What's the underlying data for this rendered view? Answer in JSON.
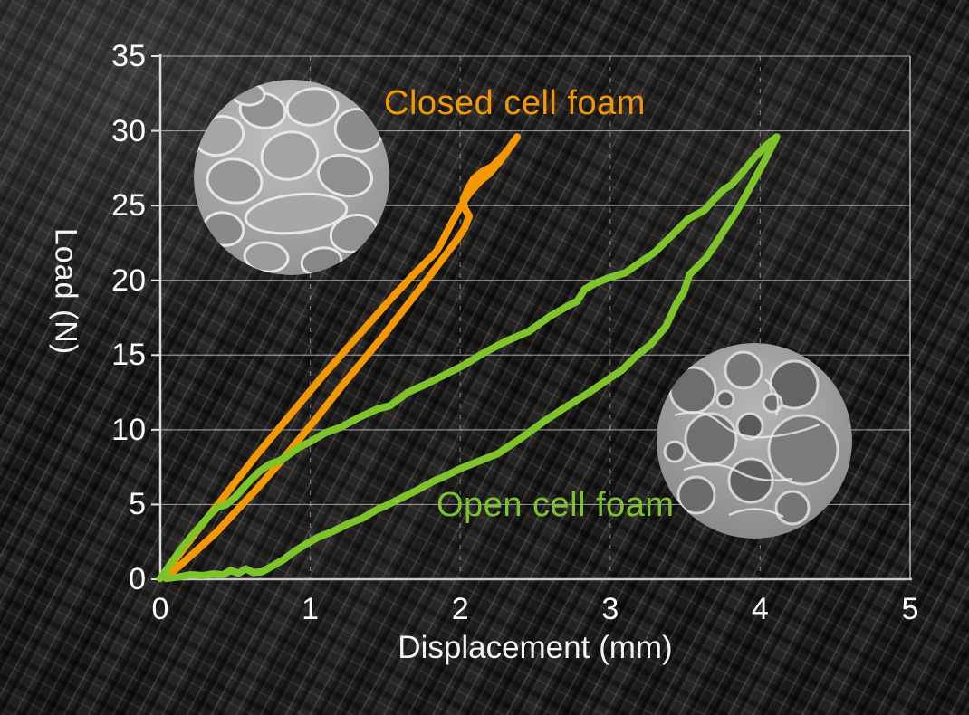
{
  "chart_data": {
    "type": "line",
    "title": "",
    "xlabel": "Displacement (mm)",
    "ylabel": "Load (N)",
    "xlim": [
      0,
      5
    ],
    "ylim": [
      0,
      35
    ],
    "x_ticks": [
      "0",
      "1",
      "2",
      "3",
      "4",
      "5"
    ],
    "x_tick_values": [
      0,
      1,
      2,
      3,
      4,
      5
    ],
    "y_ticks": [
      "0",
      "5",
      "10",
      "15",
      "20",
      "25",
      "30",
      "35"
    ],
    "y_tick_values": [
      0,
      5,
      10,
      15,
      20,
      25,
      30,
      35
    ],
    "grid": {
      "horizontal": "solid",
      "vertical": "dashed"
    },
    "legend_position": "inline-annotations",
    "series": [
      {
        "name": "Closed cell foam",
        "color": "#F39800",
        "points": [
          [
            0.02,
            0.2
          ],
          [
            0.1,
            1.3
          ],
          [
            0.22,
            2.9
          ],
          [
            0.36,
            4.7
          ],
          [
            0.5,
            6.5
          ],
          [
            0.65,
            8.4
          ],
          [
            0.8,
            10.2
          ],
          [
            0.95,
            12.0
          ],
          [
            1.1,
            13.8
          ],
          [
            1.25,
            15.5
          ],
          [
            1.4,
            17.2
          ],
          [
            1.55,
            18.9
          ],
          [
            1.68,
            20.3
          ],
          [
            1.78,
            21.3
          ],
          [
            1.84,
            21.9
          ],
          [
            1.88,
            22.6
          ],
          [
            1.94,
            23.8
          ],
          [
            2.0,
            24.9
          ],
          [
            2.06,
            25.8
          ],
          [
            2.13,
            26.6
          ],
          [
            2.19,
            27.1
          ],
          [
            2.26,
            27.9
          ],
          [
            2.33,
            28.9
          ],
          [
            2.38,
            29.6
          ],
          [
            2.35,
            29.15
          ],
          [
            2.29,
            28.4
          ],
          [
            2.21,
            27.6
          ],
          [
            2.15,
            27.3
          ],
          [
            2.09,
            26.8
          ],
          [
            2.05,
            26.1
          ],
          [
            2.02,
            25.4
          ],
          [
            2.03,
            24.8
          ],
          [
            2.06,
            24.3
          ],
          [
            2.03,
            23.5
          ],
          [
            1.97,
            22.6
          ],
          [
            1.88,
            21.4
          ],
          [
            1.76,
            19.8
          ],
          [
            1.62,
            18.0
          ],
          [
            1.48,
            16.2
          ],
          [
            1.34,
            14.5
          ],
          [
            1.2,
            12.8
          ],
          [
            1.06,
            11.0
          ],
          [
            0.92,
            9.3
          ],
          [
            0.78,
            7.6
          ],
          [
            0.64,
            6.0
          ],
          [
            0.5,
            4.5
          ],
          [
            0.37,
            3.1
          ],
          [
            0.24,
            1.9
          ],
          [
            0.13,
            0.9
          ],
          [
            0.04,
            0.15
          ]
        ]
      },
      {
        "name": "Open cell foam",
        "color": "#7DC42A",
        "points": [
          [
            0.0,
            0.05
          ],
          [
            0.06,
            0.9
          ],
          [
            0.13,
            1.9
          ],
          [
            0.2,
            2.8
          ],
          [
            0.27,
            3.6
          ],
          [
            0.33,
            4.3
          ],
          [
            0.38,
            4.8
          ],
          [
            0.44,
            5.0
          ],
          [
            0.5,
            5.5
          ],
          [
            0.58,
            6.4
          ],
          [
            0.66,
            7.2
          ],
          [
            0.73,
            7.7
          ],
          [
            0.79,
            7.9
          ],
          [
            0.84,
            8.2
          ],
          [
            0.92,
            8.8
          ],
          [
            1.0,
            9.2
          ],
          [
            1.1,
            9.8
          ],
          [
            1.21,
            10.2
          ],
          [
            1.32,
            10.8
          ],
          [
            1.45,
            11.4
          ],
          [
            1.53,
            11.6
          ],
          [
            1.65,
            12.5
          ],
          [
            1.78,
            13.1
          ],
          [
            1.9,
            13.7
          ],
          [
            2.02,
            14.3
          ],
          [
            2.15,
            15.1
          ],
          [
            2.3,
            15.9
          ],
          [
            2.46,
            16.6
          ],
          [
            2.6,
            17.6
          ],
          [
            2.72,
            18.3
          ],
          [
            2.78,
            18.6
          ],
          [
            2.83,
            19.4
          ],
          [
            2.9,
            19.8
          ],
          [
            3.0,
            20.2
          ],
          [
            3.1,
            20.5
          ],
          [
            3.2,
            21.2
          ],
          [
            3.3,
            21.9
          ],
          [
            3.42,
            23.1
          ],
          [
            3.52,
            24.1
          ],
          [
            3.63,
            24.7
          ],
          [
            3.7,
            25.5
          ],
          [
            3.76,
            26.1
          ],
          [
            3.81,
            26.4
          ],
          [
            3.88,
            27.2
          ],
          [
            3.97,
            28.3
          ],
          [
            4.05,
            29.1
          ],
          [
            4.11,
            29.6
          ],
          [
            4.08,
            29.0
          ],
          [
            4.03,
            28.0
          ],
          [
            3.97,
            26.9
          ],
          [
            3.9,
            25.6
          ],
          [
            3.83,
            24.4
          ],
          [
            3.77,
            23.5
          ],
          [
            3.7,
            22.4
          ],
          [
            3.64,
            21.5
          ],
          [
            3.58,
            20.9
          ],
          [
            3.53,
            20.4
          ],
          [
            3.49,
            19.2
          ],
          [
            3.44,
            18.4
          ],
          [
            3.37,
            16.9
          ],
          [
            3.27,
            15.7
          ],
          [
            3.18,
            15.0
          ],
          [
            3.08,
            14.0
          ],
          [
            2.99,
            13.4
          ],
          [
            2.86,
            12.5
          ],
          [
            2.7,
            11.5
          ],
          [
            2.55,
            10.5
          ],
          [
            2.4,
            9.4
          ],
          [
            2.25,
            8.4
          ],
          [
            2.1,
            7.8
          ],
          [
            2.0,
            7.4
          ],
          [
            1.88,
            6.8
          ],
          [
            1.83,
            6.6
          ],
          [
            1.7,
            5.9
          ],
          [
            1.6,
            5.4
          ],
          [
            1.5,
            4.9
          ],
          [
            1.45,
            4.7
          ],
          [
            1.35,
            4.1
          ],
          [
            1.25,
            3.7
          ],
          [
            1.15,
            3.2
          ],
          [
            1.05,
            2.8
          ],
          [
            0.98,
            2.4
          ],
          [
            0.9,
            1.9
          ],
          [
            0.82,
            1.3
          ],
          [
            0.75,
            0.9
          ],
          [
            0.68,
            0.5
          ],
          [
            0.62,
            0.45
          ],
          [
            0.57,
            0.7
          ],
          [
            0.52,
            0.4
          ],
          [
            0.47,
            0.6
          ],
          [
            0.42,
            0.3
          ],
          [
            0.35,
            0.35
          ],
          [
            0.28,
            0.25
          ],
          [
            0.2,
            0.3
          ],
          [
            0.12,
            0.15
          ],
          [
            0.04,
            0.05
          ]
        ]
      }
    ],
    "annotations": [
      {
        "id": "closed",
        "text": "Closed cell foam",
        "color": "#F39800"
      },
      {
        "id": "open",
        "text": "Open cell foam",
        "color": "#7DC42A"
      }
    ],
    "micrographs": [
      {
        "label": "closed-cell-foam-micrograph"
      },
      {
        "label": "open-cell-foam-micrograph"
      }
    ],
    "axis_color": "#ffffff",
    "gridline_color": "rgba(255,255,255,0.5)"
  }
}
